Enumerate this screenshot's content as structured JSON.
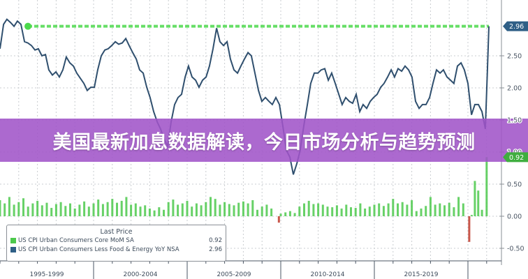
{
  "banner": {
    "title": "美国最新加息数据解读，今日市场分析与趋势预测"
  },
  "chart_data": {
    "type": "line",
    "title": "",
    "xlabel": "",
    "ylabel": "",
    "ylim": [
      -0.62,
      3.3
    ],
    "xlim": [
      1995.0,
      2021.8
    ],
    "grid": true,
    "legend_placement": "bottom-left",
    "legend_title": "Last Price",
    "x_tick_labels": [
      "1995-1999",
      "2000-2004",
      "2005-2009",
      "2010-2014",
      "2015-2019"
    ],
    "y_ticks": [
      -0.5,
      0.0,
      0.5,
      1.0,
      1.5,
      2.0,
      2.5
    ],
    "y_tick_labels": [
      "-0.50",
      "0.00",
      "0.50",
      "1.00",
      "1.50",
      "2.00",
      "2.50"
    ],
    "series": [
      {
        "name": "US CPI Urban Consumers Core MoM SA",
        "type": "bar",
        "color": "#4cc94c",
        "last_value": 0.92,
        "last_label": "0.92",
        "points": [
          [
            1995.0,
            0.25
          ],
          [
            1995.25,
            0.2
          ],
          [
            1995.5,
            0.3
          ],
          [
            1995.75,
            0.18
          ],
          [
            1996.0,
            0.22
          ],
          [
            1996.25,
            0.28
          ],
          [
            1996.5,
            0.15
          ],
          [
            1996.75,
            0.2
          ],
          [
            1997.0,
            0.24
          ],
          [
            1997.25,
            0.17
          ],
          [
            1997.5,
            0.21
          ],
          [
            1997.75,
            0.13
          ],
          [
            1998.0,
            0.19
          ],
          [
            1998.25,
            0.22
          ],
          [
            1998.5,
            0.16
          ],
          [
            1998.75,
            0.2
          ],
          [
            1999.0,
            0.12
          ],
          [
            1999.25,
            0.18
          ],
          [
            1999.5,
            0.23
          ],
          [
            1999.75,
            0.15
          ],
          [
            2000.0,
            0.2
          ],
          [
            2000.25,
            0.26
          ],
          [
            2000.5,
            0.19
          ],
          [
            2000.75,
            0.22
          ],
          [
            2001.0,
            0.27
          ],
          [
            2001.25,
            0.21
          ],
          [
            2001.5,
            0.24
          ],
          [
            2001.75,
            0.3
          ],
          [
            2002.0,
            0.18
          ],
          [
            2002.25,
            0.2
          ],
          [
            2002.5,
            0.15
          ],
          [
            2002.75,
            0.17
          ],
          [
            2003.0,
            0.12
          ],
          [
            2003.25,
            0.09
          ],
          [
            2003.5,
            0.14
          ],
          [
            2003.75,
            0.1
          ],
          [
            2004.0,
            0.22
          ],
          [
            2004.25,
            0.26
          ],
          [
            2004.5,
            0.18
          ],
          [
            2004.75,
            0.2
          ],
          [
            2005.0,
            0.24
          ],
          [
            2005.25,
            0.15
          ],
          [
            2005.5,
            0.2
          ],
          [
            2005.75,
            0.17
          ],
          [
            2006.0,
            0.22
          ],
          [
            2006.25,
            0.3
          ],
          [
            2006.5,
            0.27
          ],
          [
            2006.75,
            0.18
          ],
          [
            2007.0,
            0.22
          ],
          [
            2007.25,
            0.19
          ],
          [
            2007.5,
            0.17
          ],
          [
            2007.75,
            0.21
          ],
          [
            2008.0,
            0.23
          ],
          [
            2008.25,
            0.2
          ],
          [
            2008.5,
            0.25
          ],
          [
            2008.75,
            0.1
          ],
          [
            2009.0,
            0.15
          ],
          [
            2009.25,
            0.18
          ],
          [
            2009.5,
            0.12
          ],
          [
            2009.9,
            -0.1
          ],
          [
            2010.0,
            0.04
          ],
          [
            2010.25,
            0.06
          ],
          [
            2010.5,
            0.08
          ],
          [
            2010.75,
            0.05
          ],
          [
            2011.0,
            0.15
          ],
          [
            2011.25,
            0.2
          ],
          [
            2011.5,
            0.24
          ],
          [
            2011.75,
            0.19
          ],
          [
            2012.0,
            0.2
          ],
          [
            2012.25,
            0.18
          ],
          [
            2012.5,
            0.15
          ],
          [
            2012.75,
            0.14
          ],
          [
            2013.0,
            0.17
          ],
          [
            2013.25,
            0.12
          ],
          [
            2013.5,
            0.18
          ],
          [
            2013.75,
            0.14
          ],
          [
            2014.0,
            0.13
          ],
          [
            2014.25,
            0.2
          ],
          [
            2014.5,
            0.12
          ],
          [
            2014.75,
            0.15
          ],
          [
            2015.0,
            0.18
          ],
          [
            2015.25,
            0.2
          ],
          [
            2015.5,
            0.16
          ],
          [
            2015.75,
            0.2
          ],
          [
            2016.0,
            0.27
          ],
          [
            2016.25,
            0.2
          ],
          [
            2016.5,
            0.22
          ],
          [
            2016.75,
            0.18
          ],
          [
            2017.0,
            0.25
          ],
          [
            2017.25,
            0.08
          ],
          [
            2017.5,
            0.12
          ],
          [
            2017.75,
            0.16
          ],
          [
            2018.0,
            0.3
          ],
          [
            2018.25,
            0.18
          ],
          [
            2018.5,
            0.2
          ],
          [
            2018.75,
            0.17
          ],
          [
            2019.0,
            0.21
          ],
          [
            2019.25,
            0.14
          ],
          [
            2019.5,
            0.3
          ],
          [
            2019.75,
            0.2
          ],
          [
            2020.07,
            -0.4
          ],
          [
            2020.2,
            0.02
          ],
          [
            2020.37,
            0.55
          ],
          [
            2020.55,
            0.4
          ],
          [
            2020.75,
            0.1
          ],
          [
            2021.0,
            0.92
          ]
        ]
      },
      {
        "name": "US CPI Urban Consumers Less Food & Energy YoY NSA",
        "type": "line",
        "color": "#2f4f6e",
        "last_value": 2.96,
        "last_label": "2.96",
        "x": [
          1995.0,
          1995.19,
          1995.37,
          1995.56,
          1995.75,
          1995.93,
          1996.12,
          1996.31,
          1996.49,
          1996.68,
          1996.87,
          1997.05,
          1997.24,
          1997.43,
          1997.61,
          1997.8,
          1997.99,
          1998.17,
          1998.36,
          1998.54,
          1998.73,
          1998.92,
          1999.1,
          1999.29,
          1999.48,
          1999.66,
          1999.85,
          2000.04,
          2000.22,
          2000.41,
          2000.6,
          2000.78,
          2000.97,
          2001.16,
          2001.34,
          2001.53,
          2001.72,
          2001.9,
          2002.09,
          2002.28,
          2002.46,
          2002.65,
          2002.84,
          2003.02,
          2003.21,
          2003.4,
          2003.58,
          2003.77,
          2003.96,
          2004.14,
          2004.33,
          2004.51,
          2004.7,
          2004.89,
          2005.07,
          2005.26,
          2005.45,
          2005.63,
          2005.82,
          2006.01,
          2006.19,
          2006.38,
          2006.57,
          2006.75,
          2006.94,
          2007.13,
          2007.31,
          2007.5,
          2007.69,
          2007.87,
          2008.06,
          2008.25,
          2008.43,
          2008.62,
          2008.81,
          2008.99,
          2009.18,
          2009.37,
          2009.55,
          2009.74,
          2009.93,
          2010.11,
          2010.3,
          2010.49,
          2010.67,
          2010.86,
          2011.04,
          2011.23,
          2011.42,
          2011.6,
          2011.79,
          2011.98,
          2012.16,
          2012.35,
          2012.54,
          2012.72,
          2012.91,
          2013.1,
          2013.28,
          2013.47,
          2013.66,
          2013.84,
          2014.03,
          2014.22,
          2014.4,
          2014.59,
          2014.78,
          2014.96,
          2015.15,
          2015.34,
          2015.52,
          2015.71,
          2015.9,
          2016.08,
          2016.27,
          2016.46,
          2016.64,
          2016.83,
          2017.01,
          2017.2,
          2017.39,
          2017.57,
          2017.76,
          2017.95,
          2018.13,
          2018.32,
          2018.51,
          2018.69,
          2018.88,
          2019.07,
          2019.25,
          2019.44,
          2019.63,
          2019.81,
          2020.0,
          2020.19,
          2020.37,
          2020.56,
          2020.75,
          2020.93,
          2021.04,
          2021.12
        ],
        "y": [
          2.61,
          2.99,
          3.07,
          3.02,
          2.96,
          3.04,
          2.99,
          2.72,
          2.7,
          2.66,
          2.59,
          2.61,
          2.5,
          2.52,
          2.28,
          2.2,
          2.25,
          2.17,
          2.28,
          2.48,
          2.39,
          2.34,
          2.23,
          2.15,
          2.07,
          1.96,
          2.01,
          2.01,
          2.28,
          2.5,
          2.59,
          2.61,
          2.66,
          2.72,
          2.68,
          2.7,
          2.77,
          2.66,
          2.55,
          2.45,
          2.28,
          2.23,
          2.01,
          1.85,
          1.63,
          1.47,
          1.36,
          1.2,
          1.09,
          1.47,
          1.74,
          1.85,
          1.9,
          2.17,
          2.34,
          2.17,
          2.12,
          2.01,
          2.12,
          2.17,
          2.34,
          2.61,
          2.93,
          2.72,
          2.66,
          2.72,
          2.45,
          2.28,
          2.23,
          2.34,
          2.45,
          2.55,
          2.5,
          2.23,
          1.96,
          1.79,
          1.85,
          1.79,
          1.74,
          1.85,
          1.74,
          1.41,
          1.03,
          0.92,
          0.65,
          0.82,
          1.03,
          1.41,
          1.74,
          2.07,
          2.23,
          2.23,
          2.28,
          2.3,
          2.12,
          2.23,
          2.07,
          1.9,
          1.74,
          1.85,
          1.79,
          1.76,
          1.9,
          1.63,
          1.74,
          1.68,
          1.79,
          1.85,
          1.9,
          2.01,
          2.07,
          2.17,
          2.28,
          2.17,
          2.3,
          2.26,
          2.34,
          2.28,
          2.17,
          1.79,
          1.68,
          1.74,
          1.74,
          1.85,
          2.07,
          2.28,
          2.23,
          2.28,
          2.17,
          2.12,
          2.07,
          2.34,
          2.39,
          2.28,
          2.07,
          1.58,
          1.74,
          1.74,
          1.63,
          1.36,
          2.28,
          2.96
        ]
      }
    ]
  }
}
